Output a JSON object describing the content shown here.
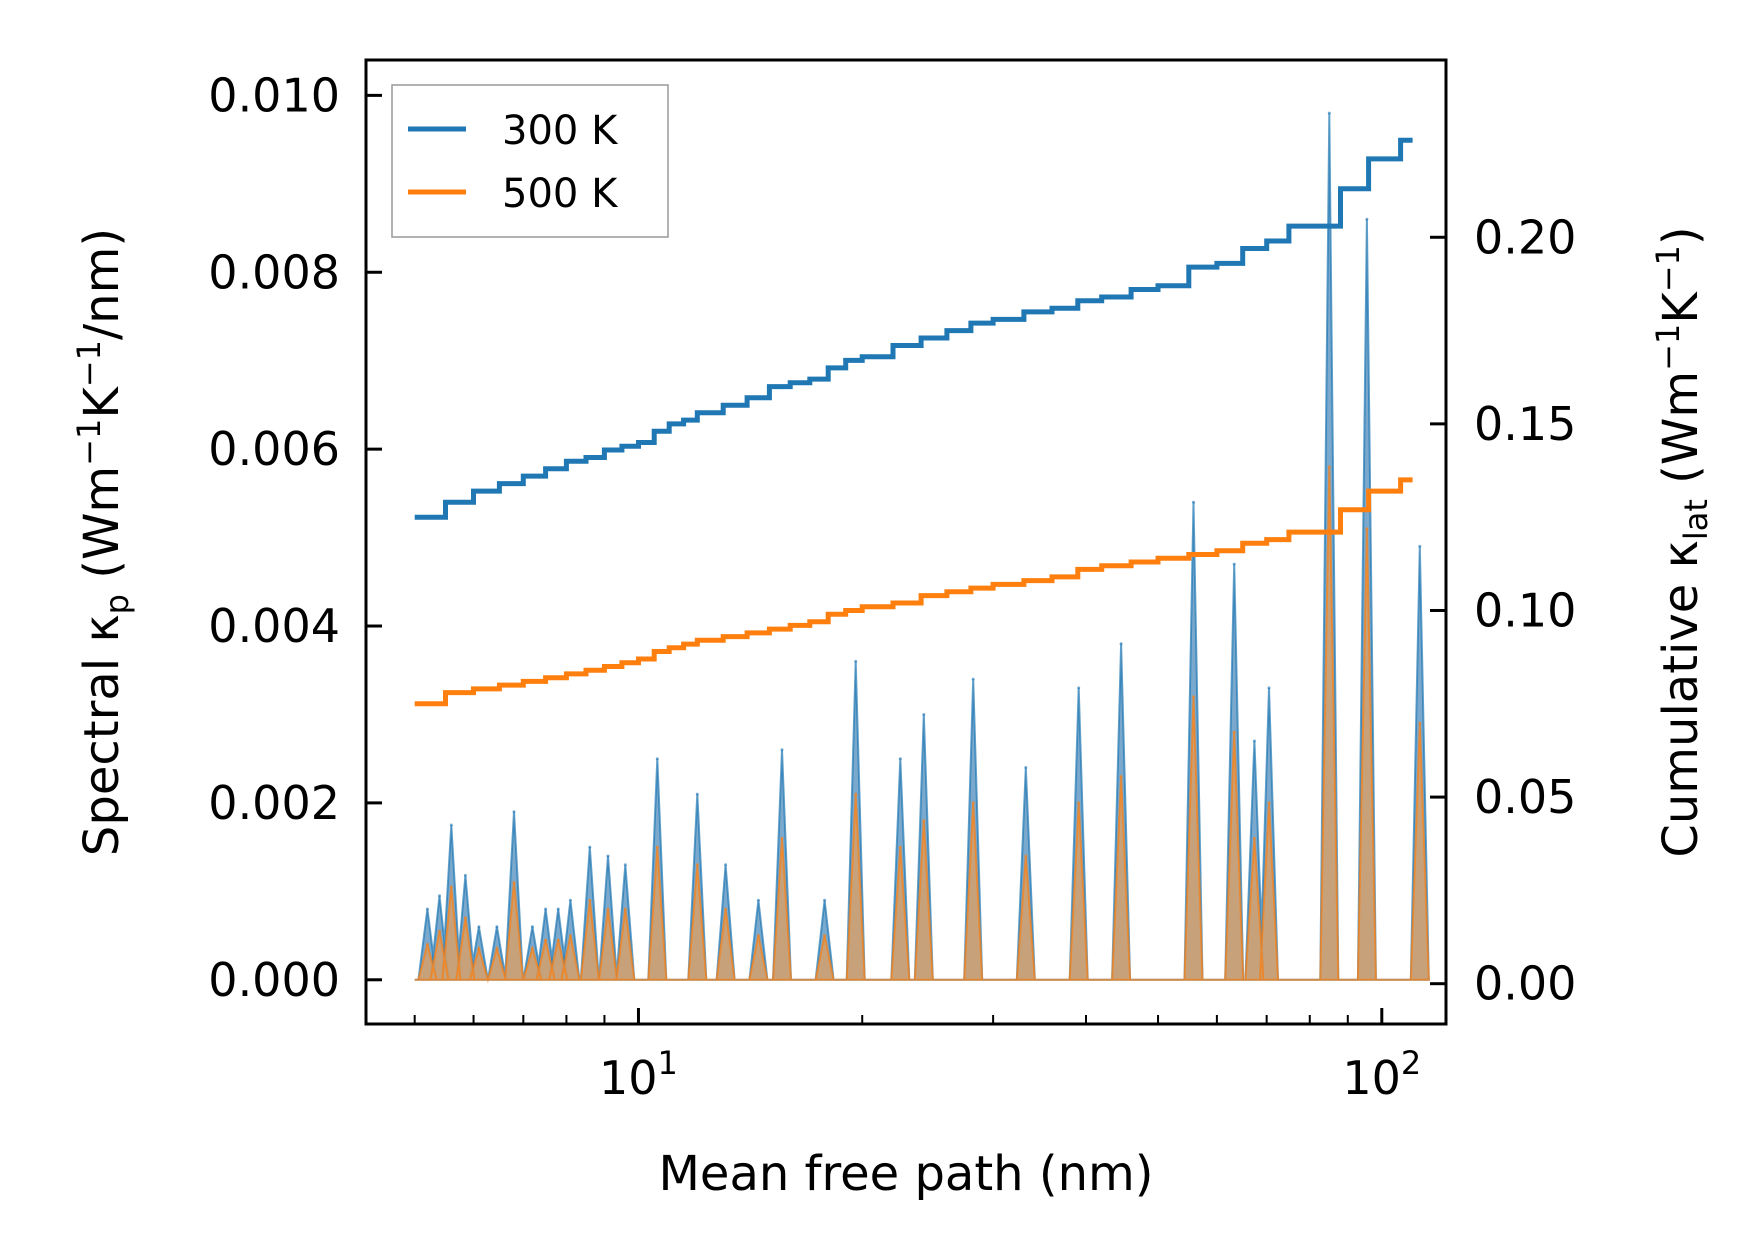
{
  "chart_data": {
    "type": "line",
    "xscale": "log",
    "xlabel": "Mean free path (nm)",
    "ylabel_left": "Spectral κp (Wm⁻¹K⁻¹/nm)",
    "ylabel_left_parts": {
      "pre": "Spectral κ",
      "sub": "p",
      "post": " (Wm",
      "sup1": "−1",
      "mid": "K",
      "sup2": "−1",
      "end": "/nm)"
    },
    "ylabel_right": "Cumulative κlat (Wm⁻¹K⁻¹)",
    "ylabel_right_parts": {
      "pre": "Cumulative κ",
      "sub": "lat",
      "post": " (Wm",
      "sup1": "−1",
      "mid": "K",
      "sup2": "−1",
      "end": ")"
    },
    "xlim": [
      4.3,
      122
    ],
    "ylim_left": [
      -0.0005,
      0.0104
    ],
    "ylim_right": [
      -0.0108,
      0.2475
    ],
    "xticks": [
      {
        "base": "10",
        "exp": "1",
        "value": 10
      },
      {
        "base": "10",
        "exp": "2",
        "value": 100
      }
    ],
    "yticks_left": [
      "0.000",
      "0.002",
      "0.004",
      "0.006",
      "0.008",
      "0.010"
    ],
    "yticks_right": [
      "0.00",
      "0.05",
      "0.10",
      "0.15",
      "0.20"
    ],
    "legend": {
      "position": "top-left",
      "entries": [
        "300 K",
        "500 K"
      ]
    },
    "colors": {
      "300 K": "#1f77b4",
      "500 K": "#ff7f0e",
      "spectral_fill_300": "#6ca0c8",
      "spectral_fill_500": "#d4a06a",
      "frame": "#000000"
    },
    "series": [
      {
        "name": "300 K",
        "axis": "right",
        "kind": "cumulative",
        "x": [
          5.0,
          5.5,
          6.0,
          6.5,
          7.0,
          7.5,
          8.0,
          8.5,
          9.0,
          9.5,
          10.0,
          10.5,
          11.0,
          11.5,
          12.0,
          13.0,
          14.0,
          15.0,
          16.0,
          17.0,
          18.0,
          19.0,
          20.0,
          22.0,
          24.0,
          26.0,
          28.0,
          30.0,
          33.0,
          36.0,
          39.0,
          42.0,
          46.0,
          50.0,
          55.0,
          60.0,
          65.0,
          70.0,
          75.0,
          80.0,
          84.0,
          88.0,
          92.0,
          96.0,
          100.0,
          106.0,
          110.0
        ],
        "values": [
          0.125,
          0.129,
          0.132,
          0.134,
          0.136,
          0.138,
          0.14,
          0.141,
          0.143,
          0.144,
          0.145,
          0.148,
          0.15,
          0.151,
          0.153,
          0.155,
          0.157,
          0.16,
          0.161,
          0.162,
          0.165,
          0.167,
          0.168,
          0.171,
          0.173,
          0.175,
          0.177,
          0.178,
          0.18,
          0.181,
          0.183,
          0.184,
          0.186,
          0.187,
          0.192,
          0.193,
          0.197,
          0.199,
          0.203,
          0.203,
          0.203,
          0.213,
          0.213,
          0.221,
          0.221,
          0.226,
          0.226
        ]
      },
      {
        "name": "500 K",
        "axis": "right",
        "kind": "cumulative",
        "x": [
          5.0,
          5.5,
          6.0,
          6.5,
          7.0,
          7.5,
          8.0,
          8.5,
          9.0,
          9.5,
          10.0,
          10.5,
          11.0,
          11.5,
          12.0,
          13.0,
          14.0,
          15.0,
          16.0,
          17.0,
          18.0,
          19.0,
          20.0,
          22.0,
          24.0,
          26.0,
          28.0,
          30.0,
          33.0,
          36.0,
          39.0,
          42.0,
          46.0,
          50.0,
          55.0,
          60.0,
          65.0,
          70.0,
          75.0,
          80.0,
          84.0,
          88.0,
          92.0,
          96.0,
          100.0,
          106.0,
          110.0
        ],
        "values": [
          0.075,
          0.078,
          0.079,
          0.08,
          0.081,
          0.082,
          0.083,
          0.084,
          0.085,
          0.086,
          0.087,
          0.089,
          0.09,
          0.091,
          0.092,
          0.093,
          0.094,
          0.095,
          0.096,
          0.097,
          0.099,
          0.1,
          0.101,
          0.102,
          0.104,
          0.105,
          0.106,
          0.107,
          0.108,
          0.109,
          0.111,
          0.112,
          0.113,
          0.114,
          0.115,
          0.116,
          0.118,
          0.119,
          0.121,
          0.121,
          0.121,
          0.127,
          0.127,
          0.132,
          0.132,
          0.135,
          0.135
        ]
      },
      {
        "name": "300 K spectral",
        "axis": "left",
        "kind": "spectral",
        "peaks": [
          {
            "x": 5.2,
            "value": 0.0008
          },
          {
            "x": 5.4,
            "value": 0.00095
          },
          {
            "x": 5.6,
            "value": 0.00175
          },
          {
            "x": 5.85,
            "value": 0.00118
          },
          {
            "x": 6.1,
            "value": 0.0006
          },
          {
            "x": 6.45,
            "value": 0.0006
          },
          {
            "x": 6.8,
            "value": 0.0019
          },
          {
            "x": 7.2,
            "value": 0.0006
          },
          {
            "x": 7.5,
            "value": 0.0008
          },
          {
            "x": 7.8,
            "value": 0.0008
          },
          {
            "x": 8.1,
            "value": 0.0009
          },
          {
            "x": 8.6,
            "value": 0.0015
          },
          {
            "x": 9.1,
            "value": 0.0014
          },
          {
            "x": 9.6,
            "value": 0.0013
          },
          {
            "x": 10.6,
            "value": 0.0025
          },
          {
            "x": 12.0,
            "value": 0.0021
          },
          {
            "x": 13.1,
            "value": 0.0013
          },
          {
            "x": 14.5,
            "value": 0.0009
          },
          {
            "x": 15.6,
            "value": 0.0026
          },
          {
            "x": 17.8,
            "value": 0.0009
          },
          {
            "x": 19.6,
            "value": 0.0036
          },
          {
            "x": 22.5,
            "value": 0.0025
          },
          {
            "x": 24.2,
            "value": 0.003
          },
          {
            "x": 28.2,
            "value": 0.0034
          },
          {
            "x": 33.2,
            "value": 0.0024
          },
          {
            "x": 39.1,
            "value": 0.0033
          },
          {
            "x": 44.6,
            "value": 0.0038
          },
          {
            "x": 55.8,
            "value": 0.0054
          },
          {
            "x": 63.3,
            "value": 0.0047
          },
          {
            "x": 67.4,
            "value": 0.0027
          },
          {
            "x": 70.5,
            "value": 0.0033
          },
          {
            "x": 85.0,
            "value": 0.0098
          },
          {
            "x": 95.5,
            "value": 0.0086
          },
          {
            "x": 112.5,
            "value": 0.0049
          }
        ]
      },
      {
        "name": "500 K spectral",
        "axis": "left",
        "kind": "spectral",
        "peaks": [
          {
            "x": 5.2,
            "value": 0.0004
          },
          {
            "x": 5.4,
            "value": 0.00055
          },
          {
            "x": 5.6,
            "value": 0.00105
          },
          {
            "x": 5.85,
            "value": 0.0007
          },
          {
            "x": 6.1,
            "value": 0.00035
          },
          {
            "x": 6.45,
            "value": 0.00035
          },
          {
            "x": 6.8,
            "value": 0.0011
          },
          {
            "x": 7.2,
            "value": 0.00035
          },
          {
            "x": 7.5,
            "value": 0.00045
          },
          {
            "x": 7.8,
            "value": 0.00045
          },
          {
            "x": 8.1,
            "value": 0.0005
          },
          {
            "x": 8.6,
            "value": 0.0009
          },
          {
            "x": 9.1,
            "value": 0.0008
          },
          {
            "x": 9.6,
            "value": 0.0008
          },
          {
            "x": 10.6,
            "value": 0.0015
          },
          {
            "x": 12.0,
            "value": 0.0013
          },
          {
            "x": 13.1,
            "value": 0.0008
          },
          {
            "x": 14.5,
            "value": 0.0005
          },
          {
            "x": 15.6,
            "value": 0.0016
          },
          {
            "x": 17.8,
            "value": 0.0005
          },
          {
            "x": 19.6,
            "value": 0.0021
          },
          {
            "x": 22.5,
            "value": 0.0015
          },
          {
            "x": 24.2,
            "value": 0.0018
          },
          {
            "x": 28.2,
            "value": 0.002
          },
          {
            "x": 33.2,
            "value": 0.0014
          },
          {
            "x": 39.1,
            "value": 0.002
          },
          {
            "x": 44.6,
            "value": 0.0023
          },
          {
            "x": 55.8,
            "value": 0.0032
          },
          {
            "x": 63.3,
            "value": 0.0028
          },
          {
            "x": 67.4,
            "value": 0.0016
          },
          {
            "x": 70.5,
            "value": 0.002
          },
          {
            "x": 85.0,
            "value": 0.0058
          },
          {
            "x": 95.5,
            "value": 0.0051
          },
          {
            "x": 112.5,
            "value": 0.0029
          }
        ]
      }
    ]
  }
}
